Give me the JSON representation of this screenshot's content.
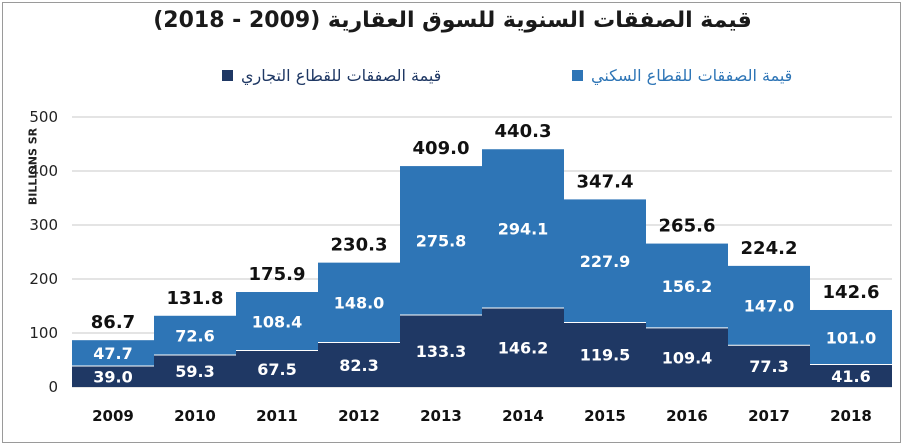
{
  "chart_data": {
    "type": "bar",
    "stacked": true,
    "title": "قيمة الصفقات السنوية للسوق العقارية (2009 - 2018)",
    "ylabel": "BILLIONS SR",
    "xlabel": "",
    "ylim": [
      0,
      500
    ],
    "yticks": [
      0,
      100,
      200,
      300,
      400,
      500
    ],
    "grid": true,
    "legend_position": "top",
    "categories": [
      "2009",
      "2010",
      "2011",
      "2012",
      "2013",
      "2014",
      "2015",
      "2016",
      "2017",
      "2018"
    ],
    "series": [
      {
        "name": "قيمة الصفقات للقطاع التجاري",
        "color": "#1f3864",
        "values": [
          39.0,
          59.3,
          67.5,
          82.3,
          133.3,
          146.2,
          119.5,
          109.4,
          77.3,
          41.6
        ],
        "labels": [
          "39.0",
          "59.3",
          "67.5",
          "82.3",
          "133.3",
          "146.2",
          "119.5",
          "109.4",
          "77.3",
          "41.6"
        ]
      },
      {
        "name": "قيمة الصفقات للقطاع السكني",
        "color": "#2e75b6",
        "values": [
          47.7,
          72.6,
          108.4,
          148.0,
          275.8,
          294.1,
          227.9,
          156.2,
          147.0,
          101.0
        ],
        "labels": [
          "47.7",
          "72.6",
          "108.4",
          "148.0",
          "275.8",
          "294.1",
          "227.9",
          "156.2",
          "147.0",
          "101.0"
        ]
      }
    ],
    "totals": [
      86.7,
      131.8,
      175.9,
      230.3,
      409.0,
      440.3,
      347.4,
      265.6,
      224.2,
      142.6
    ],
    "total_labels": [
      "86.7",
      "131.8",
      "175.9",
      "230.3",
      "409.0",
      "440.3",
      "347.4",
      "265.6",
      "224.2",
      "142.6"
    ]
  }
}
